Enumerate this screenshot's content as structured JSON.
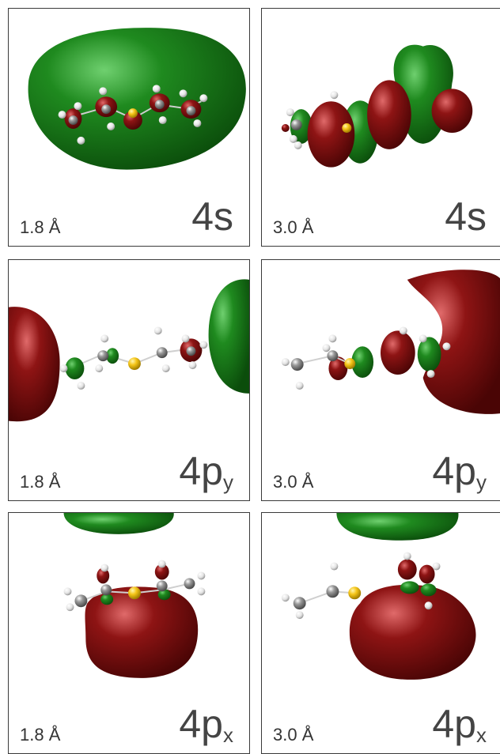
{
  "colors": {
    "lobe_positive": "#1e7d1e",
    "lobe_negative": "#7e0c0c",
    "carbon": "#8a8a8a",
    "hydrogen": "#e8e8e8",
    "sulfur": "#f5c518"
  },
  "panels": [
    {
      "distance": "1.8 Å",
      "orbital": "4s",
      "subscript": ""
    },
    {
      "distance": "3.0 Å",
      "orbital": "4s",
      "subscript": ""
    },
    {
      "distance": "1.8 Å",
      "orbital": "4p",
      "subscript": "y"
    },
    {
      "distance": "3.0 Å",
      "orbital": "4p",
      "subscript": "y"
    },
    {
      "distance": "1.8 Å",
      "orbital": "4p",
      "subscript": "x"
    },
    {
      "distance": "3.0 Å",
      "orbital": "4p",
      "subscript": "x"
    }
  ]
}
